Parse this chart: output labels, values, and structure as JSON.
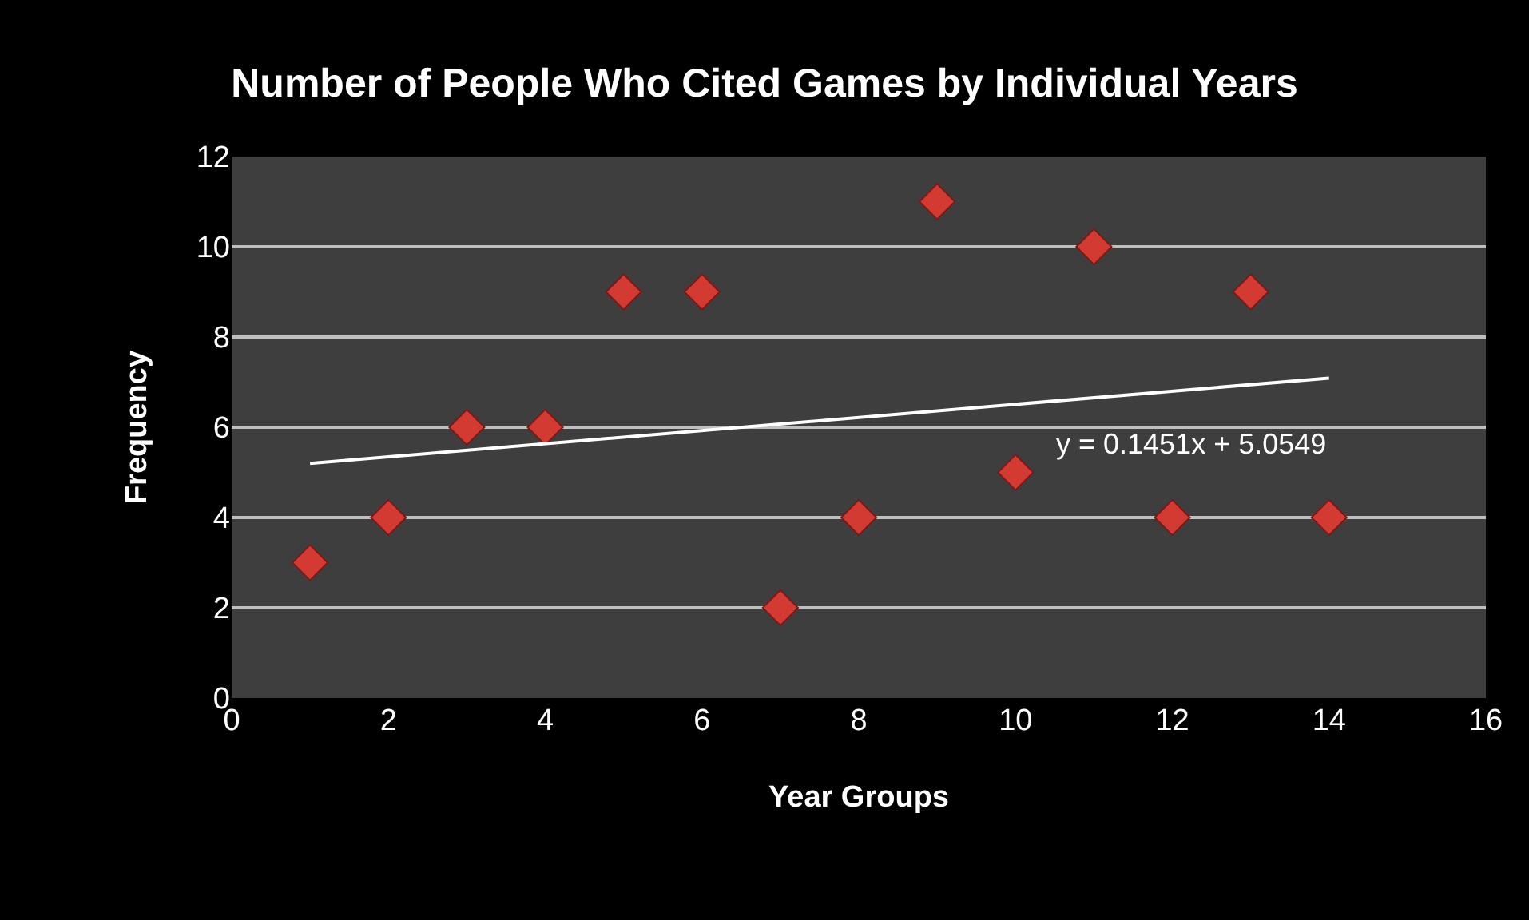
{
  "chart_data": {
    "type": "scatter",
    "title": "Number of People Who Cited Games by Individual Years",
    "xlabel": "Year Groups",
    "ylabel": "Frequency",
    "series": [
      {
        "color": "#d23a32",
        "x": [
          1,
          2,
          3,
          4,
          5,
          6,
          7,
          8,
          9,
          10,
          11,
          12,
          13,
          14
        ],
        "values": [
          3,
          4,
          6,
          6,
          9,
          9,
          2,
          4,
          11,
          5,
          10,
          4,
          9,
          4
        ]
      },
      {
        "type": "line",
        "marker": "none",
        "color": "#ffffff",
        "x": [
          1,
          14
        ],
        "values": [
          5.2,
          7.09
        ]
      }
    ],
    "annotations": [
      "y = 0.1451x + 5.0549"
    ],
    "xlim": [
      0,
      16
    ],
    "xticks": [
      0,
      2,
      4,
      6,
      8,
      10,
      12,
      14,
      16
    ],
    "ylim": [
      0,
      12
    ],
    "yticks": [
      0,
      2,
      4,
      6,
      8,
      10,
      12
    ],
    "grid": "y",
    "marker": "diamond"
  }
}
